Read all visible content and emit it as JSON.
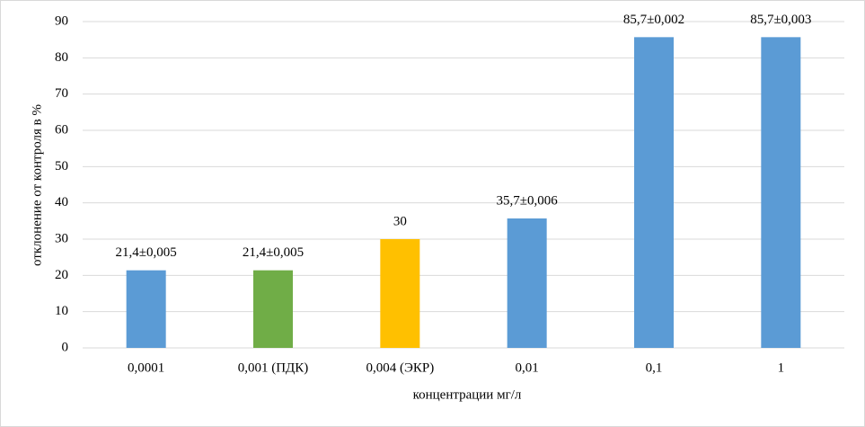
{
  "chart_data": {
    "type": "bar",
    "x_label": "концентрации мг/л",
    "y_label": "отклонение от контроля в %",
    "categories": [
      "0,0001",
      "0,001 (ПДК)",
      "0,004 (ЭКР)",
      "0,01",
      "0,1",
      "1"
    ],
    "values": [
      21.4,
      21.4,
      30,
      35.7,
      85.7,
      85.7
    ],
    "value_labels": [
      "21,4±0,005",
      "21,4±0,005",
      "30",
      "35,7±0,006",
      "85,7±0,002",
      "85,7±0,003"
    ],
    "colors": [
      "#5b9bd5",
      "#70ad47",
      "#ffc000",
      "#5b9bd5",
      "#5b9bd5",
      "#5b9bd5"
    ],
    "ylim": [
      0,
      90
    ],
    "yticks": [
      0,
      10,
      20,
      30,
      40,
      50,
      60,
      70,
      80,
      90
    ],
    "grid": true
  }
}
